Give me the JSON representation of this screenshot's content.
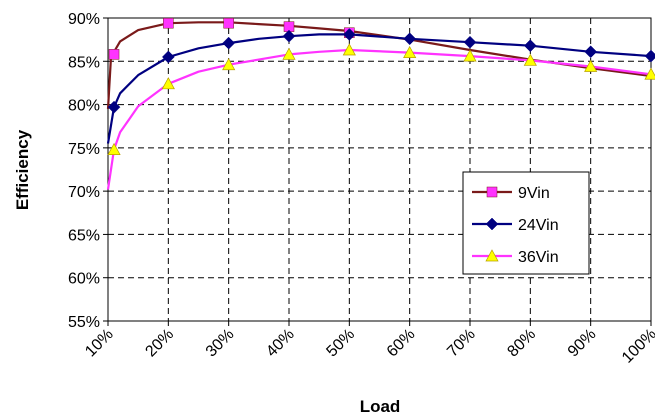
{
  "chart_data": {
    "type": "line",
    "title": "",
    "xlabel": "Load",
    "ylabel": "Efficiency",
    "x_ticks": [
      "10%",
      "20%",
      "30%",
      "40%",
      "50%",
      "60%",
      "70%",
      "80%",
      "90%",
      "100%"
    ],
    "y_ticks": [
      "55%",
      "60%",
      "65%",
      "70%",
      "75%",
      "80%",
      "85%",
      "90%"
    ],
    "xlim": [
      10,
      100
    ],
    "ylim": [
      55,
      90
    ],
    "grid": true,
    "legend_position": "right",
    "series": [
      {
        "name": "9Vin",
        "color": "#7a1a1a",
        "marker": "square",
        "marker_color": "#ff33ff",
        "curve": [
          [
            10,
            79.5
          ],
          [
            10.5,
            85.5
          ],
          [
            12,
            87.3
          ],
          [
            15,
            88.6
          ],
          [
            20,
            89.4
          ],
          [
            25,
            89.5
          ],
          [
            30,
            89.5
          ],
          [
            35,
            89.3
          ],
          [
            40,
            89.1
          ],
          [
            45,
            88.8
          ],
          [
            50,
            88.5
          ],
          [
            60,
            87.5
          ],
          [
            70,
            86.3
          ],
          [
            80,
            85.2
          ],
          [
            90,
            84.2
          ],
          [
            100,
            83.3
          ]
        ],
        "markers": [
          [
            11,
            85.8
          ],
          [
            20,
            89.4
          ],
          [
            30,
            89.4
          ],
          [
            40,
            89.0
          ],
          [
            50,
            88.3
          ]
        ]
      },
      {
        "name": "24Vin",
        "color": "#000080",
        "marker": "diamond",
        "marker_color": "#000080",
        "curve": [
          [
            10,
            75.5
          ],
          [
            11,
            79.7
          ],
          [
            12,
            81.3
          ],
          [
            15,
            83.4
          ],
          [
            20,
            85.5
          ],
          [
            25,
            86.5
          ],
          [
            30,
            87.1
          ],
          [
            35,
            87.6
          ],
          [
            40,
            87.9
          ],
          [
            45,
            88.1
          ],
          [
            50,
            88.1
          ],
          [
            60,
            87.6
          ],
          [
            70,
            87.2
          ],
          [
            80,
            86.8
          ],
          [
            90,
            86.1
          ],
          [
            100,
            85.6
          ]
        ],
        "markers": [
          [
            11,
            79.7
          ],
          [
            20,
            85.5
          ],
          [
            30,
            87.1
          ],
          [
            40,
            87.9
          ],
          [
            50,
            88.1
          ],
          [
            60,
            87.6
          ],
          [
            70,
            87.2
          ],
          [
            80,
            86.8
          ],
          [
            90,
            86.1
          ],
          [
            100,
            85.6
          ]
        ]
      },
      {
        "name": "36Vin",
        "color": "#ff33ff",
        "marker": "triangle",
        "marker_color": "#ffff00",
        "curve": [
          [
            10,
            70.2
          ],
          [
            11,
            74.8
          ],
          [
            12,
            76.8
          ],
          [
            15,
            79.8
          ],
          [
            20,
            82.4
          ],
          [
            25,
            83.8
          ],
          [
            30,
            84.6
          ],
          [
            35,
            85.2
          ],
          [
            40,
            85.8
          ],
          [
            45,
            86.1
          ],
          [
            50,
            86.3
          ],
          [
            60,
            86.0
          ],
          [
            70,
            85.6
          ],
          [
            80,
            85.1
          ],
          [
            90,
            84.4
          ],
          [
            100,
            83.5
          ]
        ],
        "markers": [
          [
            11,
            74.8
          ],
          [
            20,
            82.4
          ],
          [
            30,
            84.6
          ],
          [
            40,
            85.8
          ],
          [
            50,
            86.3
          ],
          [
            60,
            86.0
          ],
          [
            70,
            85.6
          ],
          [
            80,
            85.1
          ],
          [
            90,
            84.4
          ],
          [
            100,
            83.5
          ]
        ]
      }
    ]
  }
}
